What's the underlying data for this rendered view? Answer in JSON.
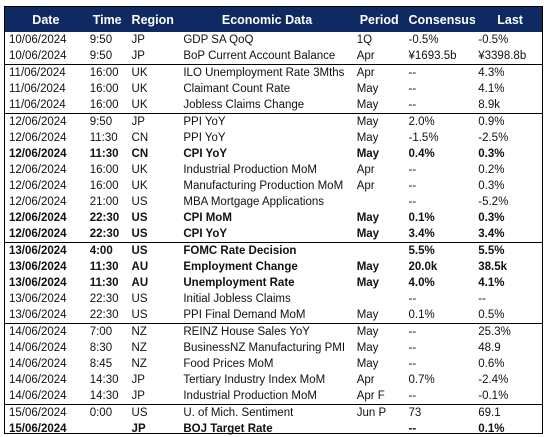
{
  "table": {
    "headers": [
      "Date",
      "Time",
      "Region",
      "Economic Data",
      "Period",
      "Consensus",
      "Last"
    ],
    "header_bg": "#0f2a63",
    "rows": [
      {
        "date": "10/06/2024",
        "time": "9:50",
        "region": "JP",
        "event": "GDP SA QoQ",
        "period": "1Q",
        "consensus": "-0.5%",
        "last": "-0.5%",
        "bold": false
      },
      {
        "date": "10/06/2024",
        "time": "9:50",
        "region": "JP",
        "event": "BoP Current Account Balance",
        "period": "Apr",
        "consensus": "¥1693.5b",
        "last": "¥3398.8b",
        "bold": false
      },
      {
        "date": "11/06/2024",
        "time": "16:00",
        "region": "UK",
        "event": "ILO Unemployment Rate 3Mths",
        "period": "Apr",
        "consensus": "--",
        "last": "4.3%",
        "bold": false
      },
      {
        "date": "11/06/2024",
        "time": "16:00",
        "region": "UK",
        "event": "Claimant Count Rate",
        "period": "May",
        "consensus": "--",
        "last": "4.1%",
        "bold": false
      },
      {
        "date": "11/06/2024",
        "time": "16:00",
        "region": "UK",
        "event": "Jobless Claims Change",
        "period": "May",
        "consensus": "--",
        "last": "8.9k",
        "bold": false
      },
      {
        "date": "12/06/2024",
        "time": "9:50",
        "region": "JP",
        "event": "PPI YoY",
        "period": "May",
        "consensus": "2.0%",
        "last": "0.9%",
        "bold": false
      },
      {
        "date": "12/06/2024",
        "time": "11:30",
        "region": "CN",
        "event": "PPI YoY",
        "period": "May",
        "consensus": "-1.5%",
        "last": "-2.5%",
        "bold": false
      },
      {
        "date": "12/06/2024",
        "time": "11:30",
        "region": "CN",
        "event": "CPI YoY",
        "period": "May",
        "consensus": "0.4%",
        "last": "0.3%",
        "bold": true
      },
      {
        "date": "12/06/2024",
        "time": "16:00",
        "region": "UK",
        "event": "Industrial Production MoM",
        "period": "Apr",
        "consensus": "--",
        "last": "0.2%",
        "bold": false
      },
      {
        "date": "12/06/2024",
        "time": "16:00",
        "region": "UK",
        "event": "Manufacturing Production MoM",
        "period": "Apr",
        "consensus": "--",
        "last": "0.3%",
        "bold": false
      },
      {
        "date": "12/06/2024",
        "time": "21:00",
        "region": "US",
        "event": "MBA Mortgage Applications",
        "period": "",
        "consensus": "--",
        "last": "-5.2%",
        "bold": false
      },
      {
        "date": "12/06/2024",
        "time": "22:30",
        "region": "US",
        "event": "CPI MoM",
        "period": "May",
        "consensus": "0.1%",
        "last": "0.3%",
        "bold": true
      },
      {
        "date": "12/06/2024",
        "time": "22:30",
        "region": "US",
        "event": "CPI YoY",
        "period": "May",
        "consensus": "3.4%",
        "last": "3.4%",
        "bold": true
      },
      {
        "date": "13/06/2024",
        "time": "4:00",
        "region": "US",
        "event": "FOMC Rate Decision",
        "period": "",
        "consensus": "5.5%",
        "last": "5.5%",
        "bold": true
      },
      {
        "date": "13/06/2024",
        "time": "11:30",
        "region": "AU",
        "event": "Employment Change",
        "period": "May",
        "consensus": "20.0k",
        "last": "38.5k",
        "bold": true
      },
      {
        "date": "13/06/2024",
        "time": "11:30",
        "region": "AU",
        "event": "Unemployment Rate",
        "period": "May",
        "consensus": "4.0%",
        "last": "4.1%",
        "bold": true
      },
      {
        "date": "13/06/2024",
        "time": "22:30",
        "region": "US",
        "event": "Initial Jobless Claims",
        "period": "",
        "consensus": "--",
        "last": "--",
        "bold": false
      },
      {
        "date": "13/06/2024",
        "time": "22:30",
        "region": "US",
        "event": "PPI Final Demand MoM",
        "period": "May",
        "consensus": "0.1%",
        "last": "0.5%",
        "bold": false
      },
      {
        "date": "14/06/2024",
        "time": "7:00",
        "region": "NZ",
        "event": "REINZ House Sales YoY",
        "period": "May",
        "consensus": "--",
        "last": "25.3%",
        "bold": false
      },
      {
        "date": "14/06/2024",
        "time": "8:30",
        "region": "NZ",
        "event": "BusinessNZ Manufacturing PMI",
        "period": "May",
        "consensus": "--",
        "last": "48.9",
        "bold": false
      },
      {
        "date": "14/06/2024",
        "time": "8:45",
        "region": "NZ",
        "event": "Food Prices MoM",
        "period": "May",
        "consensus": "--",
        "last": "0.6%",
        "bold": false
      },
      {
        "date": "14/06/2024",
        "time": "14:30",
        "region": "JP",
        "event": "Tertiary Industry Index MoM",
        "period": "Apr",
        "consensus": "0.7%",
        "last": "-2.4%",
        "bold": false
      },
      {
        "date": "14/06/2024",
        "time": "14:30",
        "region": "JP",
        "event": "Industrial Production MoM",
        "period": "Apr F",
        "consensus": "--",
        "last": "-0.1%",
        "bold": false
      },
      {
        "date": "15/06/2024",
        "time": "0:00",
        "region": "US",
        "event": "U. of Mich. Sentiment",
        "period": "Jun P",
        "consensus": "73",
        "last": "69.1",
        "bold": false
      },
      {
        "date": "15/06/2024",
        "time": "",
        "region": "JP",
        "event": "BOJ Target Rate",
        "period": "",
        "consensus": "--",
        "last": "0.1%",
        "bold": true
      }
    ]
  }
}
